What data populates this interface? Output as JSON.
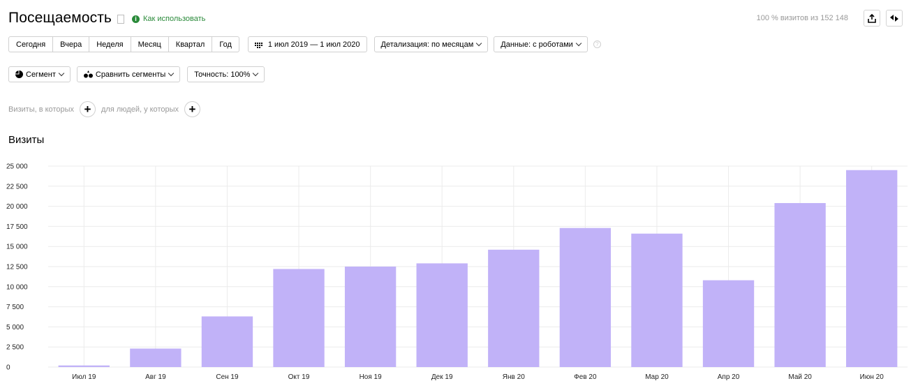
{
  "header": {
    "title": "Посещаемость",
    "howto_label": "Как использовать",
    "info_glyph": "i",
    "visits_share": "100 % визитов из 152 148"
  },
  "period_buttons": [
    "Сегодня",
    "Вчера",
    "Неделя",
    "Месяц",
    "Квартал",
    "Год"
  ],
  "date_range": "1 июл 2019 — 1 июл 2020",
  "detail_label": "Детализация: по месяцам",
  "data_label": "Данные: с роботами",
  "help_glyph": "?",
  "segment_label": "Сегмент",
  "compare_label": "Сравнить сегменты",
  "accuracy_label": "Точность: 100%",
  "filters": {
    "visits_prefix": "Визиты, в которых",
    "people_prefix": "для людей, у которых",
    "plus": "+"
  },
  "section_title": "Визиты",
  "colors": {
    "bar": "#c1b2f8",
    "accent_green": "#2a8a3a",
    "grid": "#ebebeb"
  },
  "icons": [
    "bookmark-icon",
    "info-icon",
    "export-icon",
    "settings-icon",
    "calendar-icon",
    "segment-icon",
    "compare-icon",
    "help-icon",
    "plus-icon"
  ],
  "chart_data": {
    "type": "bar",
    "title": "Визиты",
    "categories": [
      "Июл 19",
      "Авг 19",
      "Сен 19",
      "Окт 19",
      "Ноя 19",
      "Дек 19",
      "Янв 20",
      "Фев 20",
      "Мар 20",
      "Апр 20",
      "Май 20",
      "Июн 20"
    ],
    "values": [
      200,
      2300,
      6300,
      12200,
      12500,
      12900,
      14600,
      17300,
      16600,
      10800,
      20400,
      24500
    ],
    "ylim": [
      0,
      25000
    ],
    "yticks": [
      "0",
      "2 500",
      "5 000",
      "7 500",
      "10 000",
      "12 500",
      "15 000",
      "17 500",
      "20 000",
      "22 500",
      "25 000"
    ],
    "grid": true
  }
}
